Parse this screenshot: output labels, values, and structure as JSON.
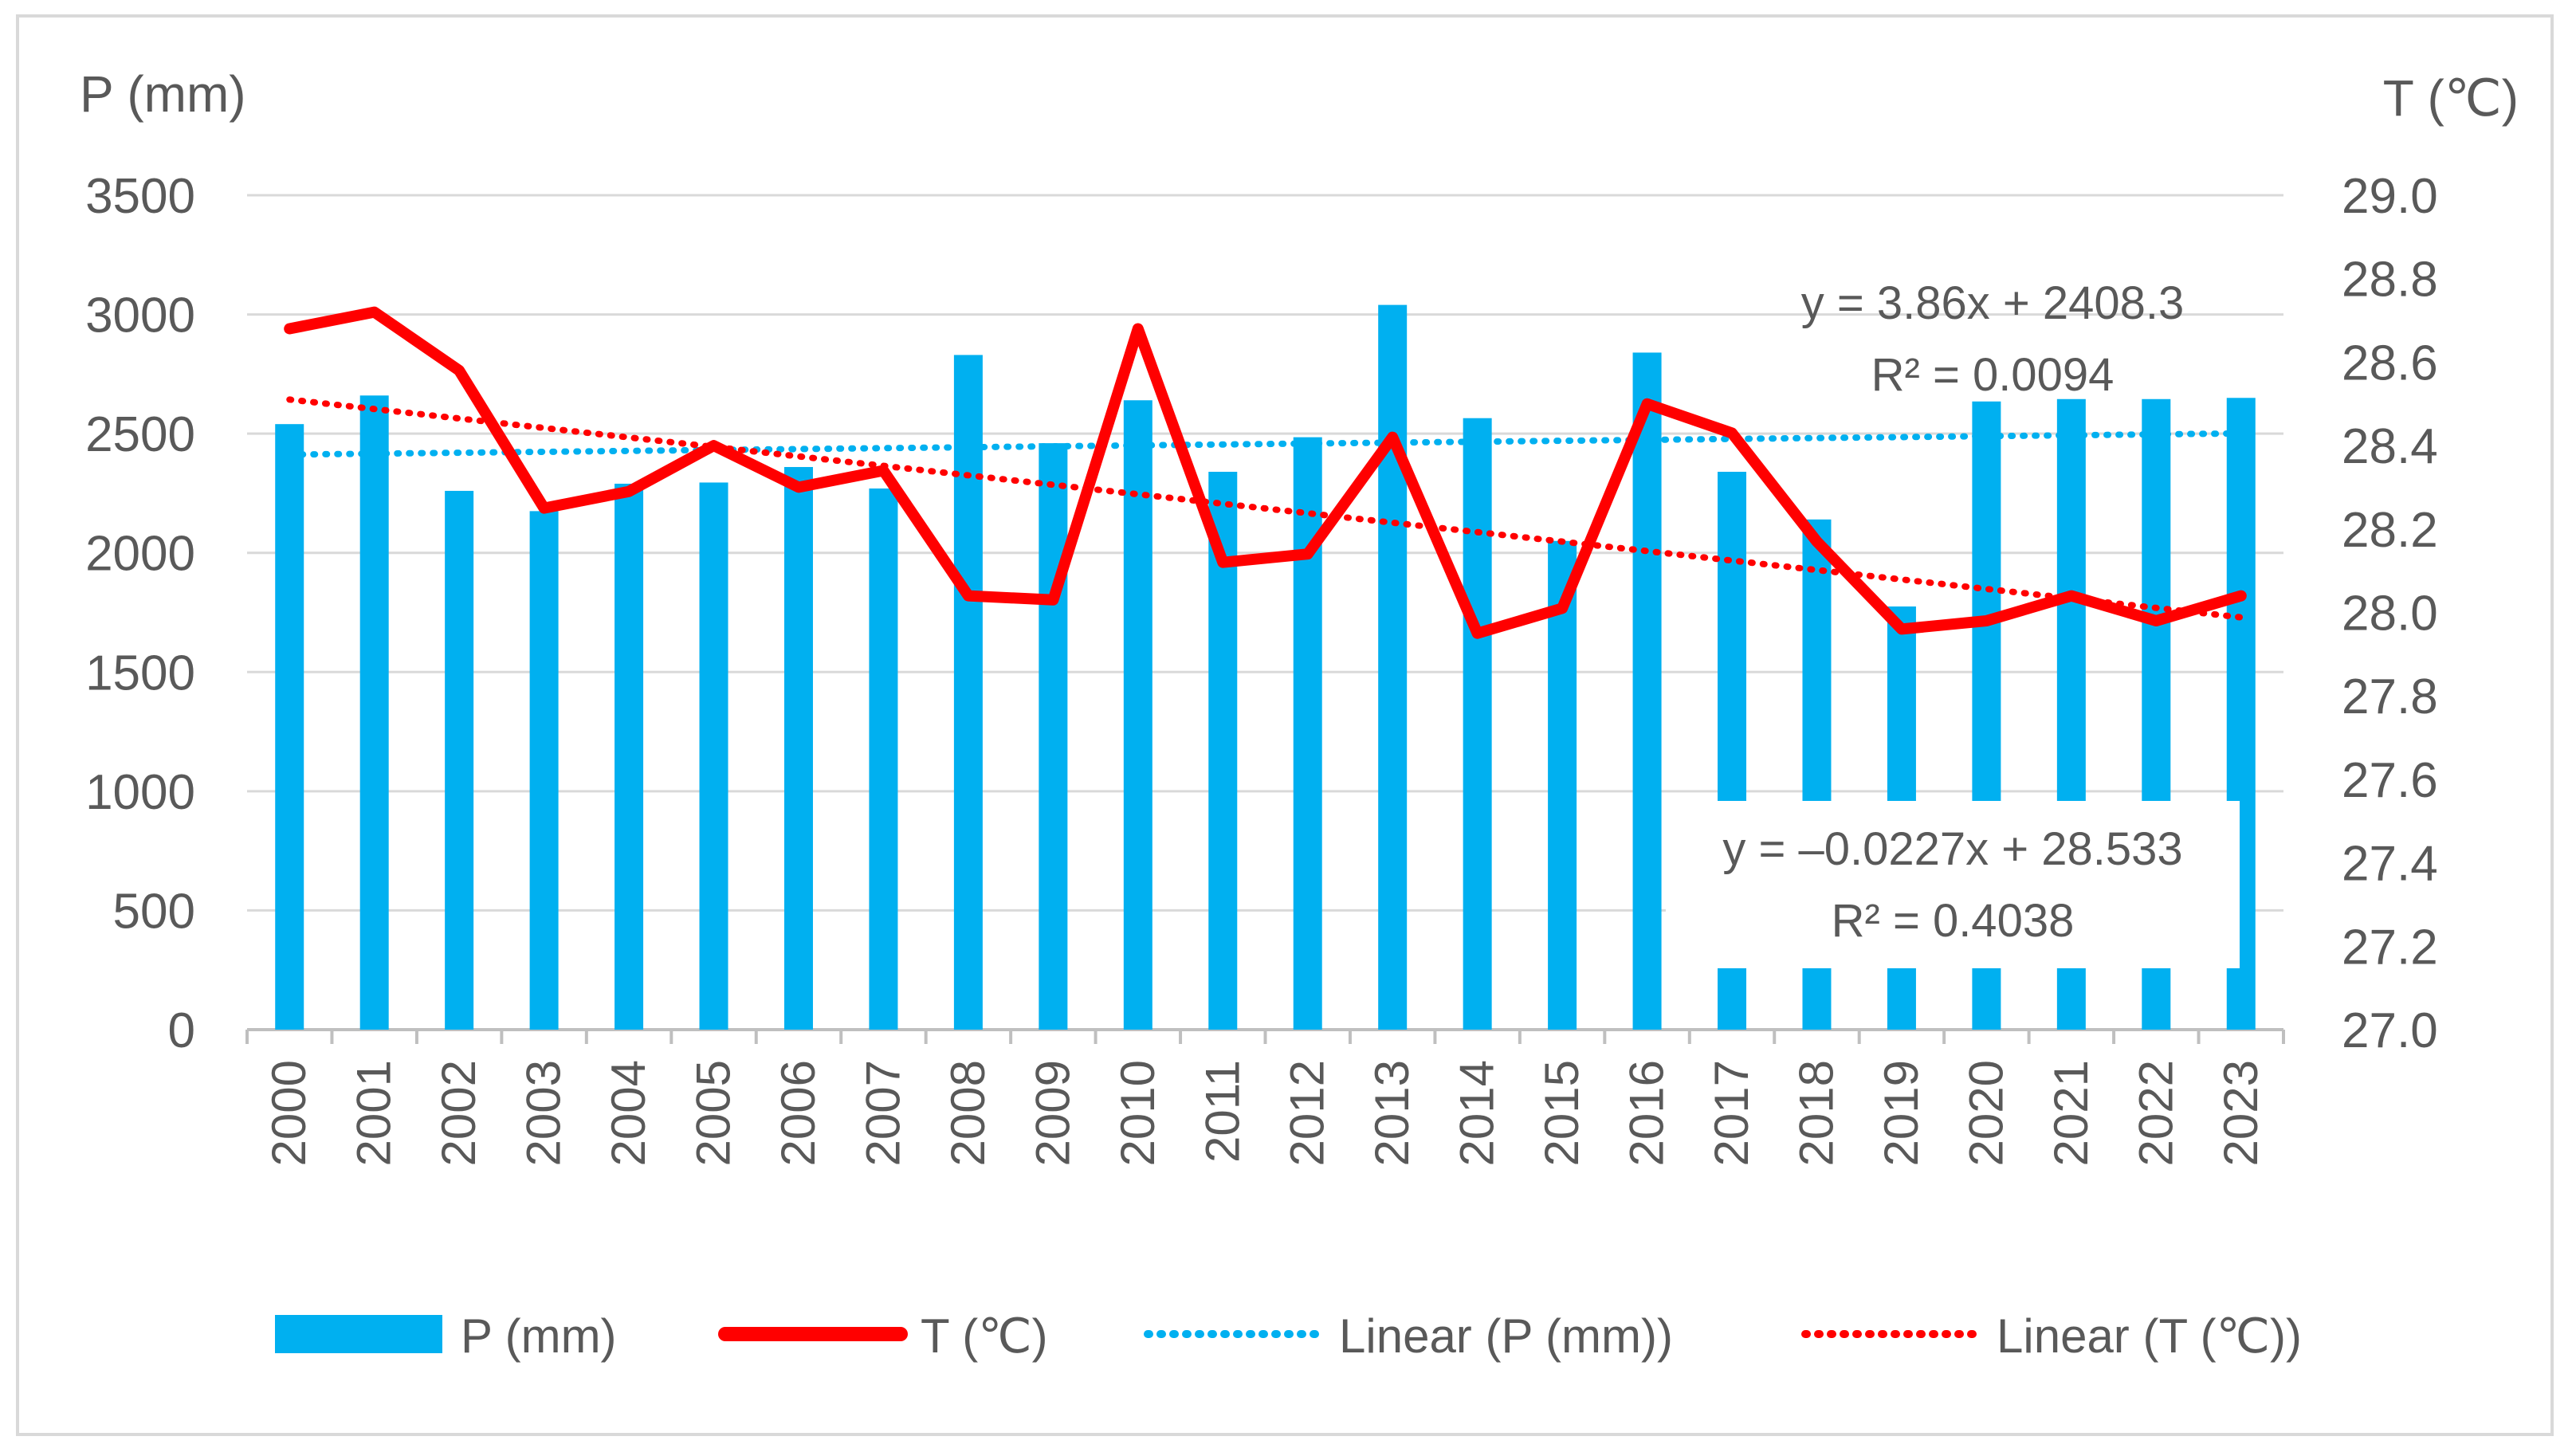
{
  "chart_data": {
    "type": "bar",
    "title": "",
    "categories": [
      "2000",
      "2001",
      "2002",
      "2003",
      "2004",
      "2005",
      "2006",
      "2007",
      "2008",
      "2009",
      "2010",
      "2011",
      "2012",
      "2013",
      "2014",
      "2015",
      "2016",
      "2017",
      "2018",
      "2019",
      "2020",
      "2021",
      "2022",
      "2023"
    ],
    "y_left_label": "P (mm)",
    "y_right_label": "T (℃)",
    "y_left_range": [
      0,
      3500
    ],
    "y_left_ticks": [
      "0",
      "500",
      "1000",
      "1500",
      "2000",
      "2500",
      "3000",
      "3500"
    ],
    "y_right_range": [
      27.0,
      29.0
    ],
    "y_right_ticks": [
      "27.0",
      "27.2",
      "27.4",
      "27.6",
      "27.8",
      "28.0",
      "28.2",
      "28.4",
      "28.6",
      "28.8",
      "29.0"
    ],
    "gridlines": true,
    "series": [
      {
        "name": "P (mm)",
        "kind": "bar",
        "axis": "left",
        "color": "#00B0F0",
        "values": [
          2540,
          2660,
          2260,
          2175,
          2290,
          2295,
          2360,
          2270,
          2830,
          2460,
          2640,
          2340,
          2485,
          3040,
          2565,
          2050,
          2840,
          2340,
          2140,
          1775,
          2635,
          2645,
          2645,
          2650
        ]
      },
      {
        "name": "T (℃)",
        "kind": "line",
        "axis": "right",
        "color": "#FF0000",
        "values": [
          28.68,
          28.72,
          28.58,
          28.25,
          28.29,
          28.4,
          28.3,
          28.34,
          28.04,
          28.03,
          28.68,
          28.12,
          28.14,
          28.42,
          27.95,
          28.01,
          28.5,
          28.43,
          28.17,
          27.96,
          27.98,
          28.04,
          27.98,
          28.04
        ]
      },
      {
        "name": "Linear (P (mm))",
        "kind": "trendline",
        "axis": "left",
        "color": "#00B0F0",
        "slope": 3.86,
        "intercept": 2408.3
      },
      {
        "name": "Linear (T (℃))",
        "kind": "trendline",
        "axis": "right",
        "color": "#FF0000",
        "slope": -0.0227,
        "intercept": 28.533
      }
    ],
    "annotations": [
      {
        "id": "p-trend-eq",
        "line1": "y = 3.86x + 2408.3",
        "line2": "R² = 0.0094"
      },
      {
        "id": "t-trend-eq",
        "line1": "y = –0.0227x + 28.533",
        "line2": "R² = 0.4038"
      }
    ],
    "legend": {
      "position": "bottom",
      "entries": [
        "P (mm)",
        "T (℃)",
        "Linear (P (mm))",
        "Linear (T (℃))"
      ]
    }
  }
}
